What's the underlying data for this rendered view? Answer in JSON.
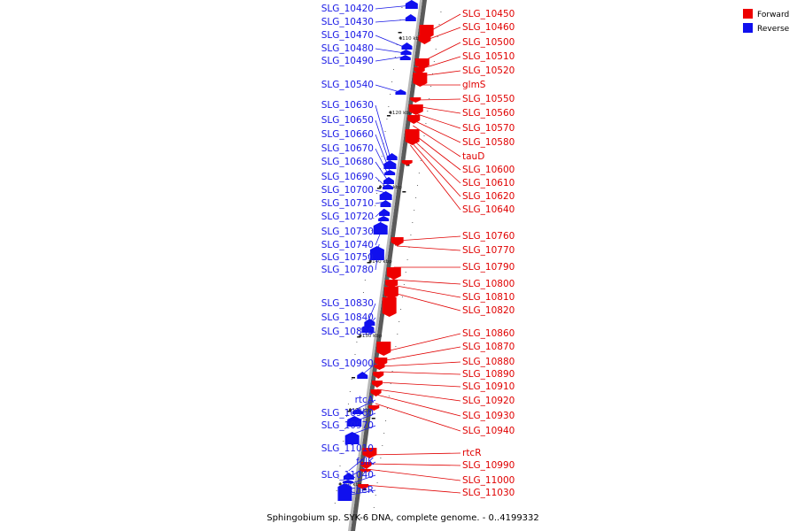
{
  "legend": {
    "forward_label": "Forward",
    "reverse_label": "Reverse",
    "forward_color": "#ee0000",
    "reverse_color": "#1010ee"
  },
  "caption": "Sphingobium sp. SYK-6 DNA, complete genome. - 0..4199332",
  "kbp_ticks": [
    "1110 kbp",
    "1120 kbp",
    "1130 kbp",
    "1140 kbp",
    "1150 kbp",
    "1160 kbp",
    "1170 kbp"
  ],
  "forward_genes": [
    "SLG_10450",
    "SLG_10460",
    "SLG_10500",
    "SLG_10510",
    "SLG_10520",
    "glmS",
    "SLG_10550",
    "SLG_10560",
    "SLG_10570",
    "SLG_10580",
    "tauD",
    "SLG_10600",
    "SLG_10610",
    "SLG_10620",
    "SLG_10640",
    "SLG_10760",
    "SLG_10770",
    "SLG_10790",
    "SLG_10800",
    "SLG_10810",
    "SLG_10820",
    "SLG_10860",
    "SLG_10870",
    "SLG_10880",
    "SLG_10890",
    "SLG_10910",
    "SLG_10920",
    "SLG_10930",
    "SLG_10940",
    "rtcR",
    "SLG_10990",
    "SLG_11000",
    "SLG_11030"
  ],
  "reverse_genes": [
    "SLG_10420",
    "SLG_10430",
    "SLG_10470",
    "SLG_10480",
    "SLG_10490",
    "SLG_10540",
    "SLG_10630",
    "SLG_10650",
    "SLG_10660",
    "SLG_10670",
    "SLG_10680",
    "SLG_10690",
    "SLG_10700",
    "SLG_10710",
    "SLG_10720",
    "SLG_10730",
    "SLG_10740",
    "SLG_10750",
    "SLG_10780",
    "SLG_10830",
    "SLG_10840",
    "SLG_10850",
    "SLG_10900",
    "rtcA",
    "SLG_10960",
    "SLG_10970",
    "SLG_11010",
    "folK",
    "SLG_11040",
    "cheR"
  ]
}
